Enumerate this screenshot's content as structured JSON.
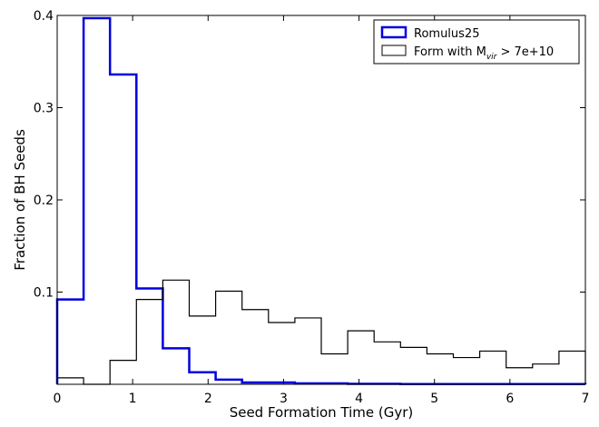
{
  "chart_data": {
    "type": "histogram",
    "title": "",
    "xlabel": "Seed Formation Time (Gyr)",
    "ylabel": "Fraction of BH Seeds",
    "xlim": [
      0,
      7
    ],
    "ylim": [
      0,
      0.4
    ],
    "x_ticks": [
      0,
      1,
      2,
      3,
      4,
      5,
      6,
      7
    ],
    "x_tick_labels": [
      "0",
      "1",
      "2",
      "3",
      "4",
      "5",
      "6",
      "7"
    ],
    "y_ticks": [
      0.1,
      0.2,
      0.3,
      0.4
    ],
    "y_tick_labels": [
      "0.1",
      "0.2",
      "0.3",
      "0.4"
    ],
    "grid": false,
    "legend_position": "top-right",
    "bin_edges": [
      0,
      0.35,
      0.7,
      1.05,
      1.4,
      1.75,
      2.1,
      2.45,
      2.8,
      3.15,
      3.5,
      3.85,
      4.2,
      4.55,
      4.9,
      5.25,
      5.6,
      5.95,
      6.3,
      6.65,
      7.0
    ],
    "series": [
      {
        "name": "Romulus25",
        "color": "#0000dd",
        "values": [
          0.092,
          0.397,
          0.336,
          0.104,
          0.039,
          0.013,
          0.005,
          0.002,
          0.002,
          0.001,
          0.001,
          0.0005,
          0.0005,
          0.0003,
          0.0003,
          0.0003,
          0.0002,
          0.0002,
          0.0002,
          0.0002
        ]
      },
      {
        "name_prefix": "Form with M",
        "name_subscript": "vir",
        "name_suffix": " > 7e+10",
        "color": "#000000",
        "values": [
          0.007,
          0.0,
          0.026,
          0.092,
          0.113,
          0.074,
          0.101,
          0.081,
          0.067,
          0.072,
          0.033,
          0.058,
          0.046,
          0.04,
          0.033,
          0.029,
          0.036,
          0.018,
          0.022,
          0.036
        ]
      }
    ]
  }
}
